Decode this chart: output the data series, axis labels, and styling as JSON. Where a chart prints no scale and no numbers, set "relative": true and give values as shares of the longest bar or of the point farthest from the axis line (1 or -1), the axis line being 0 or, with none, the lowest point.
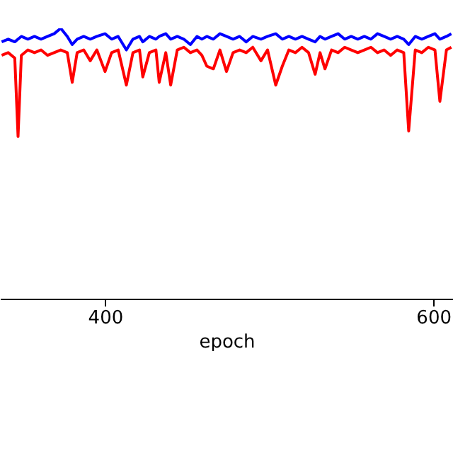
{
  "chart_data": {
    "type": "line",
    "xlabel": "epoch",
    "relative": true,
    "xlim": [
      336,
      612
    ],
    "xticks": [
      400,
      600
    ],
    "grid": false,
    "legend": false,
    "tick_labels": "x",
    "x": [
      337,
      341,
      345,
      347,
      349,
      353,
      357,
      361,
      365,
      369,
      373,
      377,
      380,
      383,
      387,
      391,
      395,
      400,
      404,
      408,
      413,
      417,
      421,
      423,
      427,
      431,
      433,
      437,
      440,
      444,
      448,
      452,
      456,
      459,
      462,
      466,
      470,
      474,
      478,
      482,
      486,
      490,
      495,
      499,
      504,
      508,
      512,
      516,
      520,
      524,
      528,
      531,
      534,
      538,
      542,
      546,
      550,
      554,
      558,
      562,
      566,
      570,
      574,
      578,
      582,
      585,
      589,
      593,
      597,
      601,
      604,
      608,
      611
    ],
    "series": [
      {
        "color": "#0000ff",
        "values": [
          0.95,
          0.96,
          0.95,
          0.96,
          0.97,
          0.96,
          0.97,
          0.96,
          0.97,
          0.98,
          1.0,
          0.97,
          0.94,
          0.96,
          0.97,
          0.96,
          0.97,
          0.98,
          0.96,
          0.97,
          0.92,
          0.96,
          0.97,
          0.95,
          0.97,
          0.96,
          0.97,
          0.98,
          0.96,
          0.97,
          0.96,
          0.94,
          0.97,
          0.96,
          0.97,
          0.96,
          0.98,
          0.97,
          0.96,
          0.97,
          0.95,
          0.97,
          0.96,
          0.97,
          0.98,
          0.96,
          0.97,
          0.96,
          0.97,
          0.96,
          0.95,
          0.97,
          0.96,
          0.97,
          0.98,
          0.96,
          0.97,
          0.96,
          0.97,
          0.96,
          0.98,
          0.97,
          0.96,
          0.97,
          0.96,
          0.94,
          0.97,
          0.96,
          0.97,
          0.98,
          0.96,
          0.97,
          0.98
        ]
      },
      {
        "color": "#ff0000",
        "values": [
          0.9,
          0.91,
          0.89,
          0.6,
          0.9,
          0.92,
          0.91,
          0.92,
          0.9,
          0.91,
          0.92,
          0.91,
          0.8,
          0.91,
          0.92,
          0.88,
          0.92,
          0.84,
          0.91,
          0.92,
          0.79,
          0.91,
          0.92,
          0.82,
          0.91,
          0.92,
          0.8,
          0.91,
          0.79,
          0.92,
          0.93,
          0.91,
          0.92,
          0.9,
          0.86,
          0.85,
          0.92,
          0.84,
          0.91,
          0.92,
          0.91,
          0.93,
          0.88,
          0.92,
          0.79,
          0.86,
          0.92,
          0.91,
          0.93,
          0.91,
          0.83,
          0.91,
          0.85,
          0.92,
          0.91,
          0.93,
          0.92,
          0.91,
          0.92,
          0.93,
          0.91,
          0.92,
          0.9,
          0.92,
          0.91,
          0.62,
          0.92,
          0.91,
          0.93,
          0.92,
          0.73,
          0.92,
          0.93
        ]
      }
    ]
  }
}
